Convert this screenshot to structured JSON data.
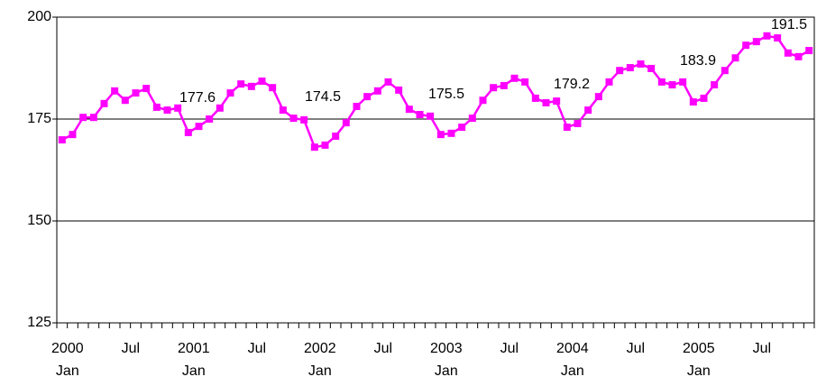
{
  "chart_data": {
    "type": "line",
    "years": [
      "2000",
      "2001",
      "2002",
      "2003",
      "2004",
      "2005"
    ],
    "categories": [
      "Jan",
      null,
      null,
      null,
      null,
      null,
      "Jul",
      null,
      null,
      null,
      null,
      null,
      "Jan",
      null,
      null,
      null,
      null,
      null,
      "Jul",
      null,
      null,
      null,
      null,
      null,
      "Jan",
      null,
      null,
      null,
      null,
      null,
      "Jul",
      null,
      null,
      null,
      null,
      null,
      "Jan",
      null,
      null,
      null,
      null,
      null,
      "Jul",
      null,
      null,
      null,
      null,
      null,
      "Jan",
      null,
      null,
      null,
      null,
      null,
      "Jul",
      null,
      null,
      null,
      null,
      null,
      "Jan",
      null,
      null,
      null,
      null,
      null,
      "Jul",
      null,
      null,
      null,
      null,
      null
    ],
    "series": [
      {
        "color": "#ff00ff",
        "values": [
          169.9,
          171.2,
          175.4,
          175.4,
          178.8,
          181.9,
          179.6,
          181.4,
          182.5,
          177.9,
          177.2,
          177.7,
          171.7,
          173.2,
          175.0,
          177.7,
          181.4,
          183.6,
          183.0,
          184.3,
          182.7,
          177.2,
          175.2,
          174.8,
          168.1,
          168.6,
          170.8,
          174.1,
          178.1,
          180.5,
          181.9,
          184.1,
          182.1,
          177.4,
          176.1,
          175.7,
          171.2,
          171.5,
          173.0,
          175.2,
          179.6,
          182.7,
          183.2,
          185.0,
          184.1,
          180.1,
          179.0,
          179.4,
          173.0,
          173.9,
          177.2,
          180.5,
          184.1,
          186.9,
          187.6,
          188.5,
          187.4,
          184.1,
          183.4,
          184.1,
          179.2,
          180.1,
          183.4,
          186.9,
          190.0,
          193.1,
          194.0,
          195.4,
          194.9,
          191.2,
          190.3,
          191.8
        ]
      }
    ],
    "annotations": [
      "177.6",
      "174.5",
      "175.5",
      "179.2",
      "183.9",
      "191.5"
    ],
    "ylim": [
      125,
      200
    ],
    "yticks": [
      125,
      150,
      175,
      200
    ],
    "grid": true
  }
}
